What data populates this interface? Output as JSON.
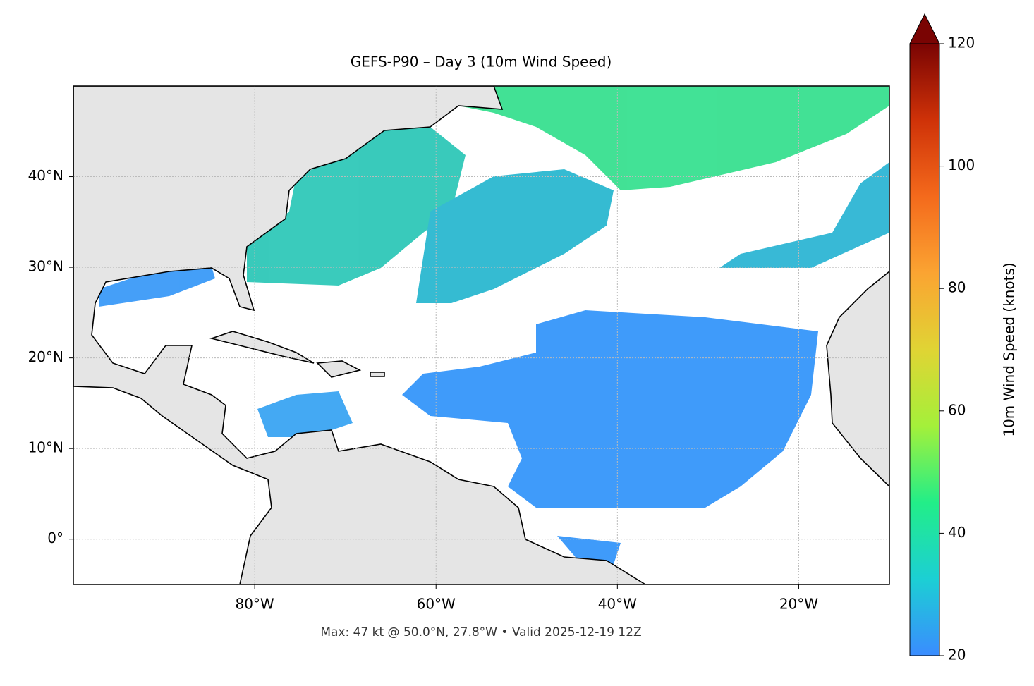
{
  "map": {
    "title": "GEFS-P90 – Day 3 (10m Wind Speed)",
    "lon_range": [
      -100,
      -10
    ],
    "lat_range": [
      -5,
      50
    ],
    "lon_ticks": [
      {
        "value": -80,
        "label": "80°W"
      },
      {
        "value": -60,
        "label": "60°W"
      },
      {
        "value": -40,
        "label": "40°W"
      },
      {
        "value": -20,
        "label": "20°W"
      }
    ],
    "lat_ticks": [
      {
        "value": 0,
        "label": "0°"
      },
      {
        "value": 10,
        "label": "10°N"
      },
      {
        "value": 20,
        "label": "20°N"
      },
      {
        "value": 30,
        "label": "30°N"
      },
      {
        "value": 40,
        "label": "40°N"
      }
    ],
    "grid": true,
    "footer": "Max: 47 kt @ 50.0°N, 27.8°W • Valid 2025-12-19 12Z",
    "colorbar": {
      "label": "10m Wind Speed (knots)",
      "range": [
        20,
        120
      ],
      "ticks": [
        20,
        40,
        60,
        80,
        100,
        120
      ],
      "colors": [
        "#3a8cff",
        "#1ccfd4",
        "#22ee88",
        "#a4f03a",
        "#e0d434",
        "#fba432",
        "#f46a1c",
        "#cf3208",
        "#7a0403"
      ]
    }
  }
}
